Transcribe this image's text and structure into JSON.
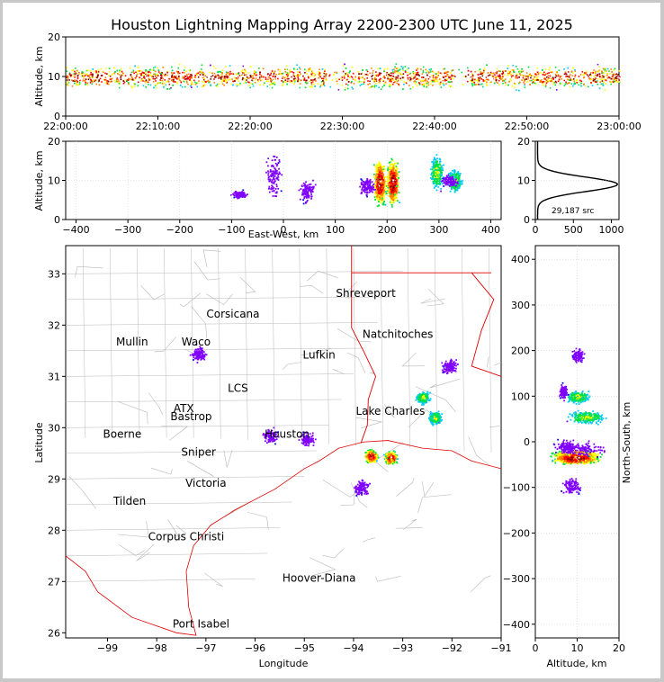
{
  "chart_data": {
    "type": "scatter",
    "title": "Houston Lightning Mapping Array 2200-2300 UTC June 11, 2025",
    "source_count_label": "29,187 src",
    "time_panel": {
      "ylabel": "Altitude, km",
      "ylim": [
        0,
        20
      ],
      "yticks": [
        "0",
        "10",
        "20"
      ],
      "xticks": [
        "22:00:00",
        "22:10:00",
        "22:20:00",
        "22:30:00",
        "22:40:00",
        "22:50:00",
        "23:00:00"
      ]
    },
    "ew_panel": {
      "xlabel": "East-West, km",
      "ylabel": "Altitude, km",
      "xlim": [
        -420,
        420
      ],
      "ylim": [
        0,
        20
      ],
      "xticks": [
        "−400",
        "−300",
        "−200",
        "−100",
        "0",
        "100",
        "200",
        "300",
        "400"
      ],
      "yticks": [
        "0",
        "10",
        "20"
      ]
    },
    "histogram_panel": {
      "xlim": [
        0,
        1100
      ],
      "ylim": [
        0,
        20
      ],
      "xticks": [
        "0",
        "500",
        "1000"
      ],
      "yticks": [
        "0",
        "10",
        "20"
      ],
      "peak_count": 1050,
      "peak_altitude_km": 9
    },
    "map_panel": {
      "xlabel": "Longitude",
      "ylabel": "Latitude",
      "xlim": [
        -99.85,
        -91.0
      ],
      "ylim": [
        25.9,
        33.55
      ],
      "xticks": [
        "−99",
        "−98",
        "−97",
        "−96",
        "−95",
        "−94",
        "−93",
        "−92",
        "−91"
      ],
      "yticks": [
        "26",
        "27",
        "28",
        "29",
        "30",
        "31",
        "32",
        "33"
      ],
      "cities": [
        {
          "name": "Shreveport",
          "lon": -93.75,
          "lat": 32.55,
          "color": "#000000"
        },
        {
          "name": "Corsicana",
          "lon": -96.45,
          "lat": 32.15,
          "color": "#000000"
        },
        {
          "name": "Natchitoches",
          "lon": -93.1,
          "lat": 31.75,
          "color": "#000000"
        },
        {
          "name": "Mullin",
          "lon": -98.5,
          "lat": 31.6,
          "color": "#f08040"
        },
        {
          "name": "Waco",
          "lon": -97.2,
          "lat": 31.6,
          "color": "#000000"
        },
        {
          "name": "Lufkin",
          "lon": -94.7,
          "lat": 31.35,
          "color": "#000000"
        },
        {
          "name": "LCS",
          "lon": -96.35,
          "lat": 30.7,
          "color": "#000000"
        },
        {
          "name": "ATX",
          "lon": -97.45,
          "lat": 30.3,
          "color": "#f08040"
        },
        {
          "name": "Lake Charles",
          "lon": -93.25,
          "lat": 30.25,
          "color": "#000000"
        },
        {
          "name": "Bastrop",
          "lon": -97.3,
          "lat": 30.15,
          "color": "#000000"
        },
        {
          "name": "Boerne",
          "lon": -98.7,
          "lat": 29.8,
          "color": "#000000"
        },
        {
          "name": "Houston",
          "lon": -95.35,
          "lat": 29.8,
          "color": "#e8a000"
        },
        {
          "name": "Sniper",
          "lon": -97.15,
          "lat": 29.45,
          "color": "#000000"
        },
        {
          "name": "Victoria",
          "lon": -97.0,
          "lat": 28.85,
          "color": "#000000"
        },
        {
          "name": "Tilden",
          "lon": -98.55,
          "lat": 28.5,
          "color": "#000000"
        },
        {
          "name": "Corpus Christi",
          "lon": -97.4,
          "lat": 27.8,
          "color": "#000000"
        },
        {
          "name": "Hoover-Diana",
          "lon": -94.7,
          "lat": 27.0,
          "color": "#1010e0"
        },
        {
          "name": "Port Isabel",
          "lon": -97.1,
          "lat": 26.1,
          "color": "#000000"
        }
      ]
    },
    "ns_panel": {
      "xlabel": "Altitude, km",
      "ylabel": "North-South, km",
      "xlim": [
        0,
        20
      ],
      "ylim": [
        -430,
        430
      ],
      "xticks": [
        "0",
        "10",
        "20"
      ],
      "yticks": [
        "−400",
        "−300",
        "−200",
        "−100",
        "0",
        "100",
        "200",
        "300",
        "400"
      ]
    },
    "storm_clusters": [
      {
        "ew_km": 185,
        "ns_km": -30,
        "lon": -93.65,
        "lat": 29.45,
        "alt_min": 2,
        "alt_max": 17,
        "intensity": "high"
      },
      {
        "ew_km": 210,
        "ns_km": -35,
        "lon": -93.25,
        "lat": 29.42,
        "alt_min": 2,
        "alt_max": 17,
        "intensity": "high"
      },
      {
        "ew_km": 295,
        "ns_km": 55,
        "lon": -92.35,
        "lat": 30.2,
        "alt_min": 6,
        "alt_max": 18,
        "intensity": "medium"
      },
      {
        "ew_km": 330,
        "ns_km": 100,
        "lon": -92.6,
        "lat": 30.6,
        "alt_min": 6,
        "alt_max": 14,
        "intensity": "medium"
      },
      {
        "ew_km": 320,
        "ns_km": 190,
        "lon": -92.05,
        "lat": 31.2,
        "alt_min": 8,
        "alt_max": 12,
        "intensity": "low"
      },
      {
        "ew_km": -20,
        "ns_km": -15,
        "lon": -95.7,
        "lat": 29.85,
        "alt_min": 3,
        "alt_max": 20,
        "intensity": "low"
      },
      {
        "ew_km": 45,
        "ns_km": -10,
        "lon": -94.95,
        "lat": 29.78,
        "alt_min": 3,
        "alt_max": 12,
        "intensity": "low"
      },
      {
        "ew_km": 160,
        "ns_km": -95,
        "lon": -93.85,
        "lat": 28.85,
        "alt_min": 5,
        "alt_max": 12,
        "intensity": "low"
      },
      {
        "ew_km": -85,
        "ns_km": 110,
        "lon": -97.15,
        "lat": 31.45,
        "alt_min": 5,
        "alt_max": 8,
        "intensity": "low"
      }
    ],
    "colors": {
      "scale": [
        "#0000ff",
        "#8000ff",
        "#00c8ff",
        "#00e040",
        "#ffff00",
        "#ff8000",
        "#ff0000",
        "#800000",
        "#ffffff"
      ],
      "state_border": "#e00000",
      "county_line": "#b8b8b8"
    }
  }
}
